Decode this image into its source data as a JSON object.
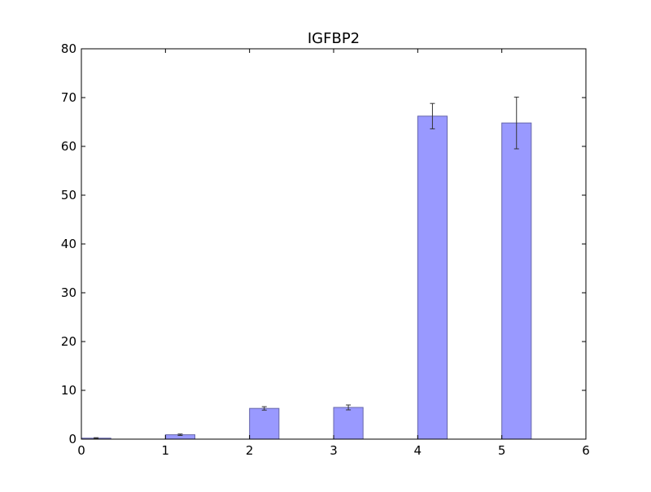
{
  "chart_data": {
    "type": "bar",
    "title": "IGFBP2",
    "xlabel": "",
    "ylabel": "",
    "xlim": [
      0,
      6
    ],
    "ylim": [
      0,
      80
    ],
    "x_ticks": [
      "0",
      "1",
      "2",
      "3",
      "4",
      "5",
      "6"
    ],
    "y_ticks": [
      "0",
      "10",
      "20",
      "30",
      "40",
      "50",
      "60",
      "70",
      "80"
    ],
    "x_tick_values": [
      0,
      1,
      2,
      3,
      4,
      5,
      6
    ],
    "y_tick_values": [
      0,
      10,
      20,
      30,
      40,
      50,
      60,
      70,
      80
    ],
    "bar_left_edges": [
      0,
      1,
      2,
      3,
      4,
      5
    ],
    "bar_width": 0.35,
    "values": [
      0.2,
      0.9,
      6.3,
      6.5,
      66.2,
      64.8
    ],
    "errors": [
      0.1,
      0.15,
      0.35,
      0.5,
      2.6,
      5.3
    ],
    "bar_color": "#9999ff",
    "bar_edge_color": "#6666aa",
    "grid": false,
    "legend": "none"
  }
}
